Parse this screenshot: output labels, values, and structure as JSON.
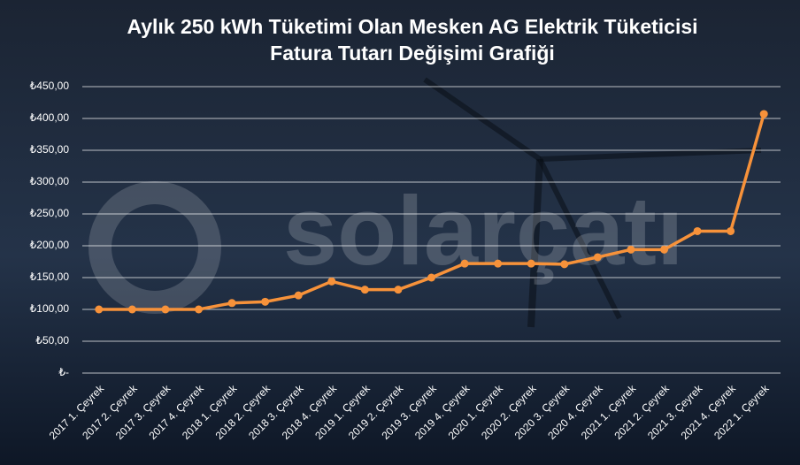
{
  "chart_data": {
    "type": "line",
    "title_lines": [
      "Aylık 250 kWh Tüketimi Olan Mesken AG Elektrik Tüketicisi",
      "Fatura Tutarı Değişimi Grafiği"
    ],
    "watermark": "solarçatı",
    "categories": [
      "2017 1. Çeyrek",
      "2017 2. Çeyrek",
      "2017 3. Çeyrek",
      "2017 4. Çeyrek",
      "2018 1. Çeyrek",
      "2018 2. Çeyrek",
      "2018 3. Çeyrek",
      "2018 4. Çeyrek",
      "2019 1. Çeyrek",
      "2019 2. Çeyrek",
      "2019 3. Çeyrek",
      "2019 4. Çeyrek",
      "2020 1. Çeyrek",
      "2020 2. Çeyrek",
      "2020 3. Çeyrek",
      "2020 4. Çeyrek",
      "2021 1. Çeyrek",
      "2021 2. Çeyrek",
      "2021 3. Çeyrek",
      "2021 4. Çeyrek",
      "2022 1. Çeyrek"
    ],
    "values": [
      100,
      100,
      100,
      100,
      110,
      112,
      122,
      144,
      131,
      131,
      150,
      172,
      172,
      172,
      171,
      182,
      194,
      194,
      223,
      223,
      407
    ],
    "color": "#f7923a",
    "ylim": [
      0,
      450
    ],
    "yticks": [
      {
        "value": 0,
        "label": "₺-"
      },
      {
        "value": 50,
        "label": "₺50,00"
      },
      {
        "value": 100,
        "label": "₺100,00"
      },
      {
        "value": 150,
        "label": "₺150,00"
      },
      {
        "value": 200,
        "label": "₺200,00"
      },
      {
        "value": 250,
        "label": "₺250,00"
      },
      {
        "value": 300,
        "label": "₺300,00"
      },
      {
        "value": 350,
        "label": "₺350,00"
      },
      {
        "value": 400,
        "label": "₺400,00"
      },
      {
        "value": 450,
        "label": "₺450,00"
      }
    ],
    "grid": true
  }
}
